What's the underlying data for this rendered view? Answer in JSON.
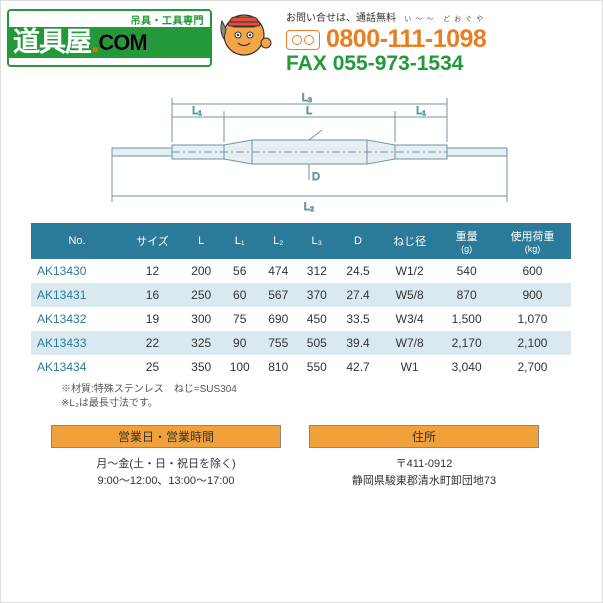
{
  "header": {
    "logo_tag": "吊具・工具専門",
    "logo_jp": "道具屋",
    "logo_com": "COM",
    "contact_label": "お問い合せは、通話無料",
    "ruby": "い～～ どおぐや",
    "phone": "0800-111-1098",
    "fax_label": "FAX",
    "fax": "055-973-1534"
  },
  "diagram": {
    "labels": {
      "L": "L",
      "L1": "L₁",
      "L2": "L₂",
      "L3": "L₃",
      "D": "D"
    },
    "stroke": "#6b96a6",
    "fill": "#e6eef2"
  },
  "table": {
    "header_bg": "#2c7a99",
    "header_fg": "#ffffff",
    "alt_bg": "#d9e9ef",
    "columns": [
      {
        "label": "No.",
        "unit": ""
      },
      {
        "label": "サイズ",
        "unit": ""
      },
      {
        "label": "L",
        "unit": ""
      },
      {
        "label": "L₁",
        "unit": ""
      },
      {
        "label": "L₂",
        "unit": ""
      },
      {
        "label": "L₃",
        "unit": ""
      },
      {
        "label": "D",
        "unit": ""
      },
      {
        "label": "ねじ径",
        "unit": ""
      },
      {
        "label": "重量",
        "unit": "(g)"
      },
      {
        "label": "使用荷重",
        "unit": "(kg)"
      }
    ],
    "rows": [
      [
        "AK13430",
        "12",
        "200",
        "56",
        "474",
        "312",
        "24.5",
        "W1/2",
        "540",
        "600"
      ],
      [
        "AK13431",
        "16",
        "250",
        "60",
        "567",
        "370",
        "27.4",
        "W5/8",
        "870",
        "900"
      ],
      [
        "AK13432",
        "19",
        "300",
        "75",
        "690",
        "450",
        "33.5",
        "W3/4",
        "1,500",
        "1,070"
      ],
      [
        "AK13433",
        "22",
        "325",
        "90",
        "755",
        "505",
        "39.4",
        "W7/8",
        "2,170",
        "2,100"
      ],
      [
        "AK13434",
        "25",
        "350",
        "100",
        "810",
        "550",
        "42.7",
        "W1",
        "3,040",
        "2,700"
      ]
    ],
    "notes": [
      "※材質:特殊ステンレス　ねじ=SUS304",
      "※L₂は最長寸法です。"
    ]
  },
  "footer": {
    "hours_head": "営業日・営業時間",
    "hours_line1": "月～金(土・日・祝日を除く)",
    "hours_line2": "9:00～12:00、13:00～17:00",
    "addr_head": "住所",
    "addr_line1": "〒411-0912",
    "addr_line2": "静岡県駿東郡清水町卸団地73"
  },
  "colors": {
    "green": "#23993a",
    "orange": "#e67e22",
    "footer_orange": "#f2a13a",
    "teal": "#2c7a99"
  }
}
